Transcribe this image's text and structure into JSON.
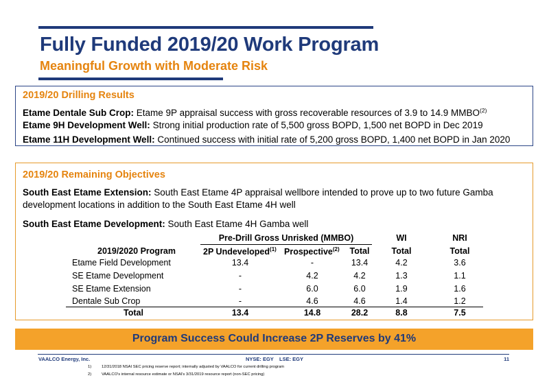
{
  "header": {
    "title": "Fully Funded 2019/20 Work Program",
    "subtitle": "Meaningful Growth with Moderate Risk"
  },
  "drilling": {
    "title": "2019/20 Drilling Results",
    "items": [
      {
        "label": "Etame Dentale Sub Crop:",
        "text": " Etame 9P appraisal success with gross recoverable resources of 3.9 to 14.9 MMBO",
        "sup": "(2)"
      },
      {
        "label": "Etame 9H Development Well:",
        "text": " Strong initial production rate of 5,500 gross BOPD, 1,500 net BOPD in Dec 2019"
      },
      {
        "label": "Etame 11H Development Well:",
        "text": " Continued success with initial rate of 5,200 gross BOPD, 1,400 net BOPD in Jan 2020"
      }
    ]
  },
  "objectives": {
    "title": "2019/20 Remaining Objectives",
    "ext_label": "South East Etame Extension:",
    "ext_line1": " South East Etame 4P appraisal wellbore intended to prove up to two future Gamba",
    "ext_line2": "development locations in addition to the South East Etame 4H well",
    "dev_label": "South East Etame Development:",
    "dev_text": " South East Etame 4H Gamba well"
  },
  "table": {
    "group_header": "Pre-Drill Gross Unrisked (MMBO)",
    "wi_header": "WI",
    "nri_header": "NRI",
    "col_program": "2019/2020 Program",
    "col_2p": "2P Undeveloped",
    "col_2p_sup": "(1)",
    "col_prosp": "Prospective",
    "col_prosp_sup": "(2)",
    "col_total": "Total",
    "col_wi_total": "Total",
    "col_nri_total": "Total",
    "rows": [
      {
        "program": "Etame Field Development",
        "p2": "13.4",
        "prosp": "-",
        "total": "13.4",
        "wi": "4.2",
        "nri": "3.6"
      },
      {
        "program": "SE Etame Development",
        "p2": "-",
        "prosp": "4.2",
        "total": "4.2",
        "wi": "1.3",
        "nri": "1.1"
      },
      {
        "program": "SE Etame Extension",
        "p2": "-",
        "prosp": "6.0",
        "total": "6.0",
        "wi": "1.9",
        "nri": "1.6"
      },
      {
        "program": "Dentale Sub Crop",
        "p2": "-",
        "prosp": "4.6",
        "total": "4.6",
        "wi": "1.4",
        "nri": "1.2"
      }
    ],
    "total_row": {
      "program": "Total",
      "p2": "13.4",
      "prosp": "14.8",
      "total": "28.2",
      "wi": "8.8",
      "nri": "7.5"
    }
  },
  "banner": "Program Success Could Increase 2P Reserves by 41%",
  "footer": {
    "company": "VAALCO Energy, Inc.",
    "ticker": "NYSE: EGY    LSE: EGY",
    "page": "11",
    "notes": [
      {
        "num": "1)",
        "text": "12/31/2018 NSAI SEC pricing reserve report; internally adjusted by VAALCO for current drilling program"
      },
      {
        "num": "2)",
        "text": "VAALCO's internal resource estimate or NSAI's 3/31/2019 resource report (non-SEC pricing)"
      }
    ]
  },
  "colors": {
    "navy": "#1f3a7a",
    "orange": "#e5840f",
    "banner": "#f4a22a"
  }
}
